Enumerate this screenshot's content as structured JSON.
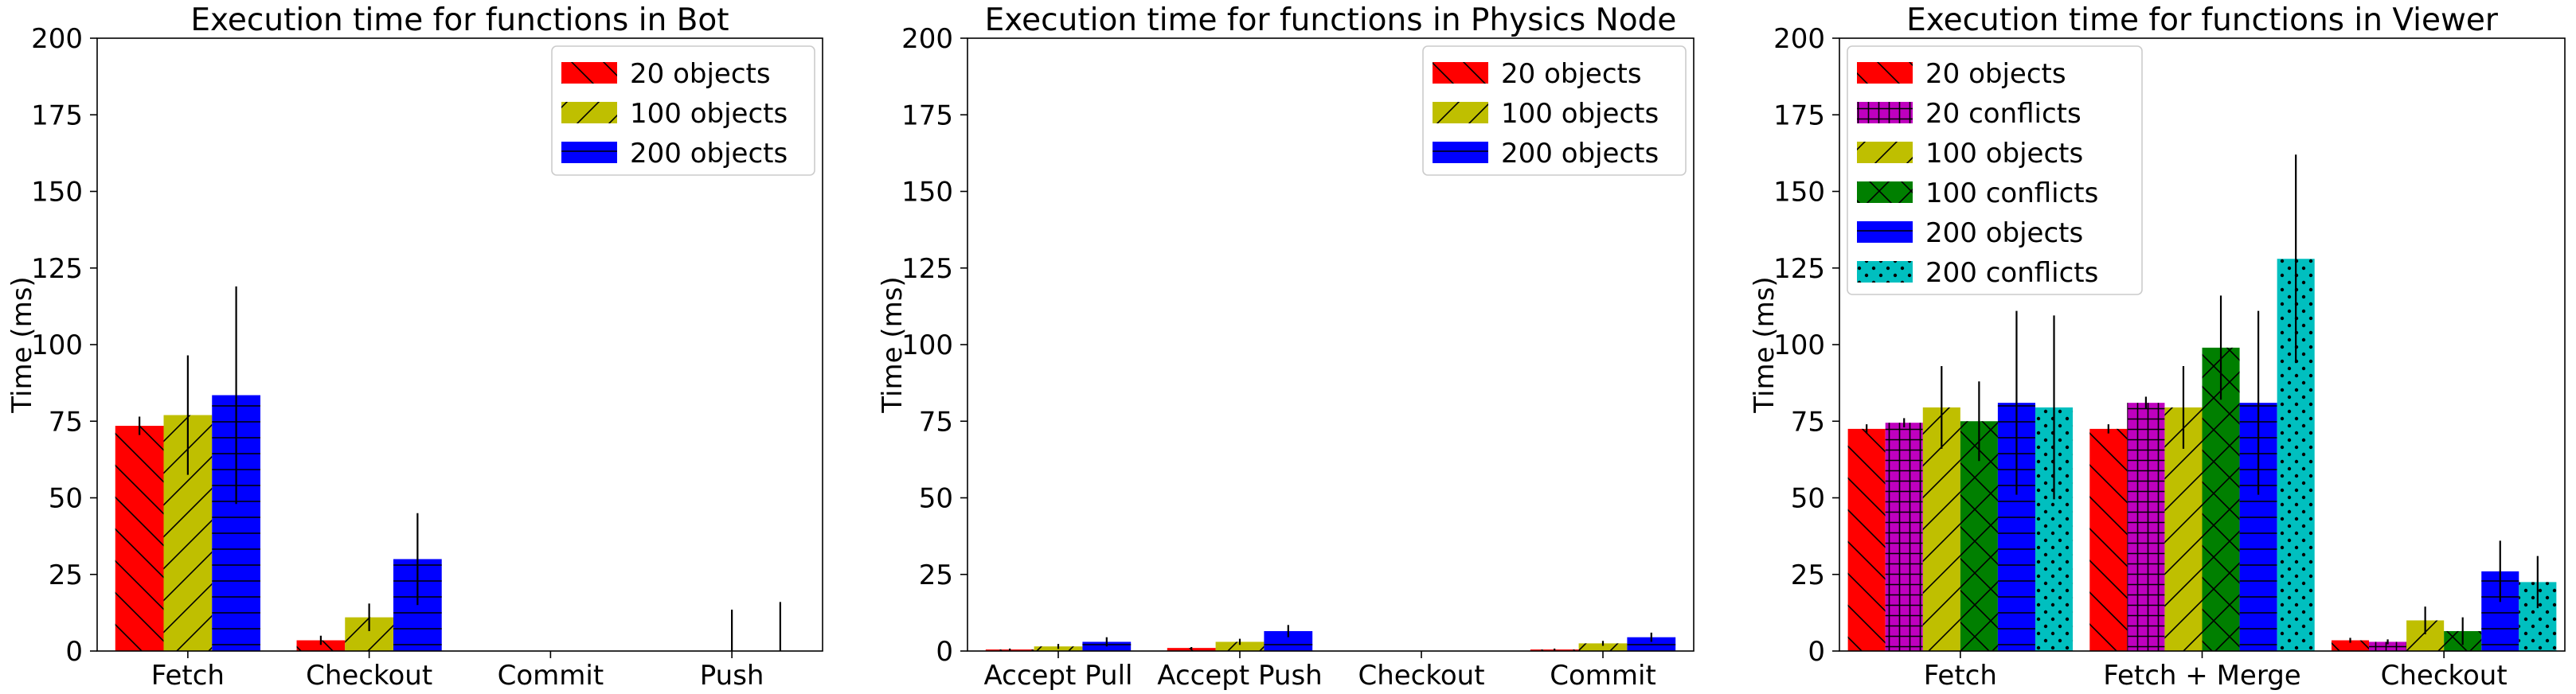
{
  "chart_data": [
    {
      "type": "bar",
      "title": "Execution time for functions in Bot",
      "xlabel": "",
      "ylabel": "Time (ms)",
      "ylim": [
        0,
        200
      ],
      "yticks": [
        0,
        25,
        50,
        75,
        100,
        125,
        150,
        175,
        200
      ],
      "grid": false,
      "legend_position": "top-right",
      "categories": [
        "Fetch",
        "Checkout",
        "Commit",
        "Push"
      ],
      "series": [
        {
          "name": "20 objects",
          "color": "#ff0000",
          "hatch": "backslash",
          "values": [
            73.5,
            3.5,
            0,
            0
          ],
          "errors": [
            3,
            1.5,
            0,
            0
          ]
        },
        {
          "name": "100 objects",
          "color": "#bfbf00",
          "hatch": "slash",
          "values": [
            77,
            11,
            0,
            0
          ],
          "errors": [
            19.5,
            4.5,
            0,
            13.5
          ]
        },
        {
          "name": "200 objects",
          "color": "#0000ff",
          "hatch": "horizontal",
          "values": [
            83.5,
            30,
            0,
            0
          ],
          "errors": [
            35.5,
            15,
            0,
            16
          ]
        }
      ]
    },
    {
      "type": "bar",
      "title": "Execution time for functions in Physics Node",
      "xlabel": "",
      "ylabel": "Time (ms)",
      "ylim": [
        0,
        200
      ],
      "yticks": [
        0,
        25,
        50,
        75,
        100,
        125,
        150,
        175,
        200
      ],
      "grid": false,
      "legend_position": "top-right",
      "categories": [
        "Accept Pull",
        "Accept Push",
        "Checkout",
        "Commit"
      ],
      "series": [
        {
          "name": "20 objects",
          "color": "#ff0000",
          "hatch": "backslash",
          "values": [
            0.5,
            1,
            0,
            0.5
          ],
          "errors": [
            0.3,
            0.3,
            0,
            0.3
          ]
        },
        {
          "name": "100 objects",
          "color": "#bfbf00",
          "hatch": "slash",
          "values": [
            1.5,
            3,
            0,
            2.5
          ],
          "errors": [
            0.8,
            1,
            0,
            0.8
          ]
        },
        {
          "name": "200 objects",
          "color": "#0000ff",
          "hatch": "horizontal",
          "values": [
            3,
            6.5,
            0,
            4.5
          ],
          "errors": [
            1.5,
            2,
            0,
            1.5
          ]
        }
      ]
    },
    {
      "type": "bar",
      "title": "Execution time for functions in Viewer",
      "xlabel": "",
      "ylabel": "Time (ms)",
      "ylim": [
        0,
        200
      ],
      "yticks": [
        0,
        25,
        50,
        75,
        100,
        125,
        150,
        175,
        200
      ],
      "grid": false,
      "legend_position": "top-left",
      "categories": [
        "Fetch",
        "Fetch + Merge",
        "Checkout"
      ],
      "series": [
        {
          "name": "20 objects",
          "color": "#ff0000",
          "hatch": "backslash",
          "values": [
            72.5,
            72.5,
            3.5
          ],
          "errors": [
            1.5,
            1.5,
            0.8
          ]
        },
        {
          "name": "20 conflicts",
          "color": "#bf00bf",
          "hatch": "plus",
          "values": [
            74.5,
            81,
            3
          ],
          "errors": [
            1.5,
            2,
            0.8
          ]
        },
        {
          "name": "100 objects",
          "color": "#bfbf00",
          "hatch": "slash",
          "values": [
            79.5,
            79.5,
            10
          ],
          "errors": [
            13.5,
            13.5,
            4.5
          ]
        },
        {
          "name": "100 conflicts",
          "color": "#007f00",
          "hatch": "cross",
          "values": [
            75,
            99,
            6.5
          ],
          "errors": [
            13,
            17,
            4.5
          ]
        },
        {
          "name": "200 objects",
          "color": "#0000ff",
          "hatch": "horizontal",
          "values": [
            81,
            81,
            26
          ],
          "errors": [
            30,
            30,
            10
          ]
        },
        {
          "name": "200 conflicts",
          "color": "#00bfbf",
          "hatch": "dots",
          "values": [
            79.5,
            128,
            22.5
          ],
          "errors": [
            30,
            34,
            8.5
          ]
        }
      ]
    }
  ]
}
